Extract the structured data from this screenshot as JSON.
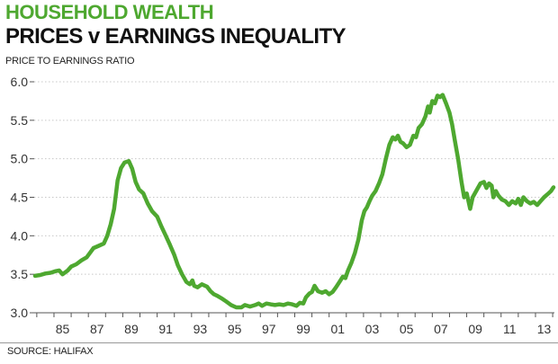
{
  "header": {
    "kicker": "HOUSEHOLD WEALTH",
    "title": "PRICES v EARNINGS INEQUALITY"
  },
  "colors": {
    "accent": "#4ea830",
    "line": "#4ea830",
    "grid": "#c8c8c8",
    "axis": "#555555"
  },
  "footer": {
    "source": "SOURCE: HALIFAX"
  },
  "chart_data": {
    "type": "line",
    "title": "",
    "xlabel": "",
    "ylabel": "PRICE TO EARNINGS RATIO",
    "xlim": [
      1983.85,
      2014.1
    ],
    "ylim": [
      3.0,
      6.0
    ],
    "grid": "horizontal dotted",
    "legend": "none",
    "y_ticks": [
      {
        "value": 3.0,
        "label": "3.0"
      },
      {
        "value": 3.5,
        "label": "3.5"
      },
      {
        "value": 4.0,
        "label": "4.0"
      },
      {
        "value": 4.5,
        "label": "4.5"
      },
      {
        "value": 5.0,
        "label": "5.0"
      },
      {
        "value": 5.5,
        "label": "5.5"
      },
      {
        "value": 6.0,
        "label": "6.0"
      }
    ],
    "x_ticks": [
      {
        "value": 1985,
        "label": "85"
      },
      {
        "value": 1987,
        "label": "87"
      },
      {
        "value": 1989,
        "label": "89"
      },
      {
        "value": 1991,
        "label": "91"
      },
      {
        "value": 1993,
        "label": "93"
      },
      {
        "value": 1995,
        "label": "95"
      },
      {
        "value": 1997,
        "label": "97"
      },
      {
        "value": 1999,
        "label": "99"
      },
      {
        "value": 2001,
        "label": "01"
      },
      {
        "value": 2003,
        "label": "03"
      },
      {
        "value": 2005,
        "label": "05"
      },
      {
        "value": 2007,
        "label": "07"
      },
      {
        "value": 2009,
        "label": "09"
      },
      {
        "value": 2011,
        "label": "11"
      },
      {
        "value": 2013,
        "label": "13"
      }
    ],
    "series": [
      {
        "points": [
          [
            1983.9,
            3.48
          ],
          [
            1984.2,
            3.49
          ],
          [
            1984.5,
            3.51
          ],
          [
            1984.8,
            3.52
          ],
          [
            1985.1,
            3.54
          ],
          [
            1985.3,
            3.55
          ],
          [
            1985.5,
            3.5
          ],
          [
            1985.8,
            3.55
          ],
          [
            1986.0,
            3.6
          ],
          [
            1986.3,
            3.63
          ],
          [
            1986.6,
            3.68
          ],
          [
            1986.9,
            3.72
          ],
          [
            1987.1,
            3.78
          ],
          [
            1987.3,
            3.84
          ],
          [
            1987.6,
            3.87
          ],
          [
            1987.9,
            3.9
          ],
          [
            1988.1,
            4.0
          ],
          [
            1988.3,
            4.15
          ],
          [
            1988.5,
            4.35
          ],
          [
            1988.7,
            4.72
          ],
          [
            1988.9,
            4.88
          ],
          [
            1989.1,
            4.95
          ],
          [
            1989.35,
            4.97
          ],
          [
            1989.55,
            4.87
          ],
          [
            1989.75,
            4.7
          ],
          [
            1989.95,
            4.6
          ],
          [
            1990.2,
            4.55
          ],
          [
            1990.45,
            4.42
          ],
          [
            1990.7,
            4.32
          ],
          [
            1991.0,
            4.25
          ],
          [
            1991.25,
            4.12
          ],
          [
            1991.5,
            4.0
          ],
          [
            1991.75,
            3.88
          ],
          [
            1992.0,
            3.75
          ],
          [
            1992.2,
            3.62
          ],
          [
            1992.45,
            3.5
          ],
          [
            1992.7,
            3.4
          ],
          [
            1992.9,
            3.37
          ],
          [
            1993.05,
            3.42
          ],
          [
            1993.15,
            3.35
          ],
          [
            1993.35,
            3.33
          ],
          [
            1993.6,
            3.37
          ],
          [
            1993.9,
            3.34
          ],
          [
            1994.1,
            3.28
          ],
          [
            1994.3,
            3.24
          ],
          [
            1994.5,
            3.22
          ],
          [
            1994.8,
            3.18
          ],
          [
            1995.0,
            3.15
          ],
          [
            1995.3,
            3.1
          ],
          [
            1995.6,
            3.07
          ],
          [
            1995.9,
            3.07
          ],
          [
            1996.1,
            3.1
          ],
          [
            1996.4,
            3.08
          ],
          [
            1996.7,
            3.1
          ],
          [
            1996.9,
            3.12
          ],
          [
            1997.1,
            3.09
          ],
          [
            1997.35,
            3.12
          ],
          [
            1997.6,
            3.11
          ],
          [
            1997.85,
            3.1
          ],
          [
            1998.1,
            3.11
          ],
          [
            1998.35,
            3.1
          ],
          [
            1998.6,
            3.12
          ],
          [
            1998.85,
            3.11
          ],
          [
            1999.1,
            3.09
          ],
          [
            1999.3,
            3.13
          ],
          [
            1999.5,
            3.12
          ],
          [
            1999.65,
            3.2
          ],
          [
            1999.85,
            3.25
          ],
          [
            2000.0,
            3.27
          ],
          [
            2000.15,
            3.35
          ],
          [
            2000.35,
            3.28
          ],
          [
            2000.6,
            3.26
          ],
          [
            2000.8,
            3.28
          ],
          [
            2001.0,
            3.24
          ],
          [
            2001.2,
            3.27
          ],
          [
            2001.4,
            3.33
          ],
          [
            2001.6,
            3.4
          ],
          [
            2001.8,
            3.47
          ],
          [
            2001.95,
            3.45
          ],
          [
            2002.1,
            3.55
          ],
          [
            2002.3,
            3.65
          ],
          [
            2002.5,
            3.78
          ],
          [
            2002.7,
            3.95
          ],
          [
            2002.9,
            4.2
          ],
          [
            2003.05,
            4.32
          ],
          [
            2003.2,
            4.37
          ],
          [
            2003.35,
            4.45
          ],
          [
            2003.5,
            4.52
          ],
          [
            2003.7,
            4.58
          ],
          [
            2003.9,
            4.68
          ],
          [
            2004.1,
            4.8
          ],
          [
            2004.3,
            5.0
          ],
          [
            2004.5,
            5.18
          ],
          [
            2004.7,
            5.28
          ],
          [
            2004.85,
            5.25
          ],
          [
            2005.0,
            5.3
          ],
          [
            2005.15,
            5.22
          ],
          [
            2005.3,
            5.2
          ],
          [
            2005.5,
            5.15
          ],
          [
            2005.7,
            5.18
          ],
          [
            2005.9,
            5.3
          ],
          [
            2006.05,
            5.28
          ],
          [
            2006.2,
            5.4
          ],
          [
            2006.4,
            5.45
          ],
          [
            2006.6,
            5.55
          ],
          [
            2006.75,
            5.68
          ],
          [
            2006.85,
            5.6
          ],
          [
            2007.0,
            5.75
          ],
          [
            2007.15,
            5.72
          ],
          [
            2007.3,
            5.82
          ],
          [
            2007.45,
            5.8
          ],
          [
            2007.6,
            5.83
          ],
          [
            2007.8,
            5.72
          ],
          [
            2008.0,
            5.6
          ],
          [
            2008.15,
            5.45
          ],
          [
            2008.3,
            5.25
          ],
          [
            2008.5,
            5.0
          ],
          [
            2008.7,
            4.7
          ],
          [
            2008.85,
            4.5
          ],
          [
            2009.0,
            4.55
          ],
          [
            2009.1,
            4.45
          ],
          [
            2009.2,
            4.35
          ],
          [
            2009.35,
            4.5
          ],
          [
            2009.6,
            4.6
          ],
          [
            2009.8,
            4.68
          ],
          [
            2010.0,
            4.7
          ],
          [
            2010.15,
            4.62
          ],
          [
            2010.3,
            4.68
          ],
          [
            2010.45,
            4.65
          ],
          [
            2010.55,
            4.5
          ],
          [
            2010.7,
            4.58
          ],
          [
            2010.85,
            4.52
          ],
          [
            2011.05,
            4.47
          ],
          [
            2011.25,
            4.45
          ],
          [
            2011.45,
            4.4
          ],
          [
            2011.65,
            4.45
          ],
          [
            2011.85,
            4.42
          ],
          [
            2012.0,
            4.48
          ],
          [
            2012.15,
            4.4
          ],
          [
            2012.3,
            4.5
          ],
          [
            2012.5,
            4.45
          ],
          [
            2012.7,
            4.42
          ],
          [
            2012.9,
            4.44
          ],
          [
            2013.1,
            4.4
          ],
          [
            2013.3,
            4.45
          ],
          [
            2013.5,
            4.5
          ],
          [
            2013.7,
            4.54
          ],
          [
            2013.9,
            4.58
          ],
          [
            2014.05,
            4.63
          ]
        ]
      }
    ]
  }
}
